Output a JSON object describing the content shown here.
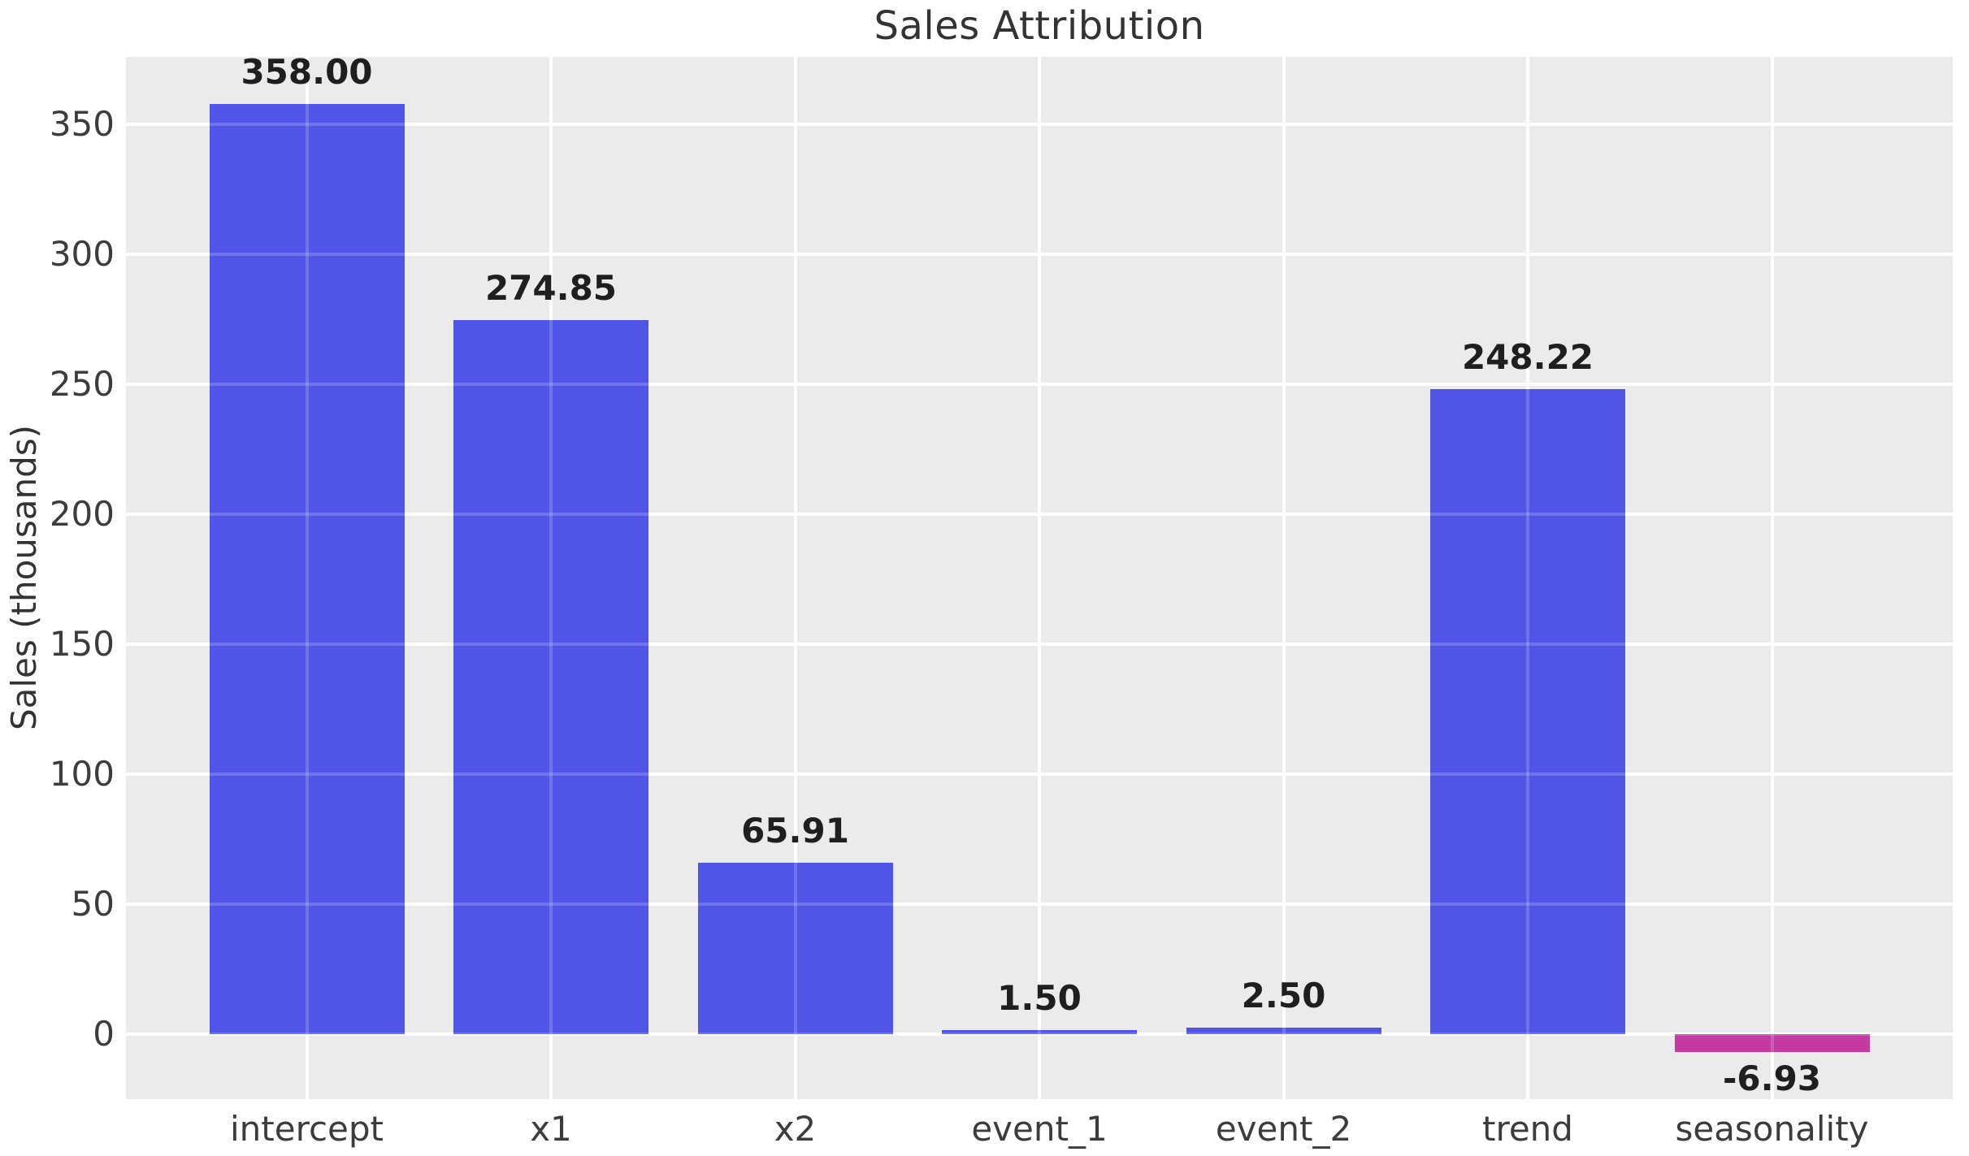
{
  "chart_data": {
    "type": "bar",
    "title": "Sales Attribution",
    "xlabel": "",
    "ylabel": "Sales (thousands)",
    "categories": [
      "intercept",
      "x1",
      "x2",
      "event_1",
      "event_2",
      "trend",
      "seasonality"
    ],
    "values": [
      358.0,
      274.85,
      65.91,
      1.5,
      2.5,
      248.22,
      -6.93
    ],
    "value_labels": [
      "358.00",
      "274.85",
      "65.91",
      "1.50",
      "2.50",
      "248.22",
      "-6.93"
    ],
    "yticks": [
      0,
      50,
      100,
      150,
      200,
      250,
      300,
      350
    ],
    "ytick_labels": [
      "0",
      "50",
      "100",
      "150",
      "200",
      "250",
      "300",
      "350"
    ],
    "ylim": [
      -25,
      376
    ],
    "grid": true,
    "legend_position": "none",
    "style": "ggplot",
    "colors": {
      "positive_bar": "#5055e8",
      "negative_bar": "#c43aa0",
      "plot_background": "#ebebeb",
      "figure_background": "#ffffff",
      "gridline": "#ffffff",
      "tick_text": "#3c3c3c",
      "title_text": "#333333",
      "value_label_text": "#1f1f1f"
    }
  }
}
